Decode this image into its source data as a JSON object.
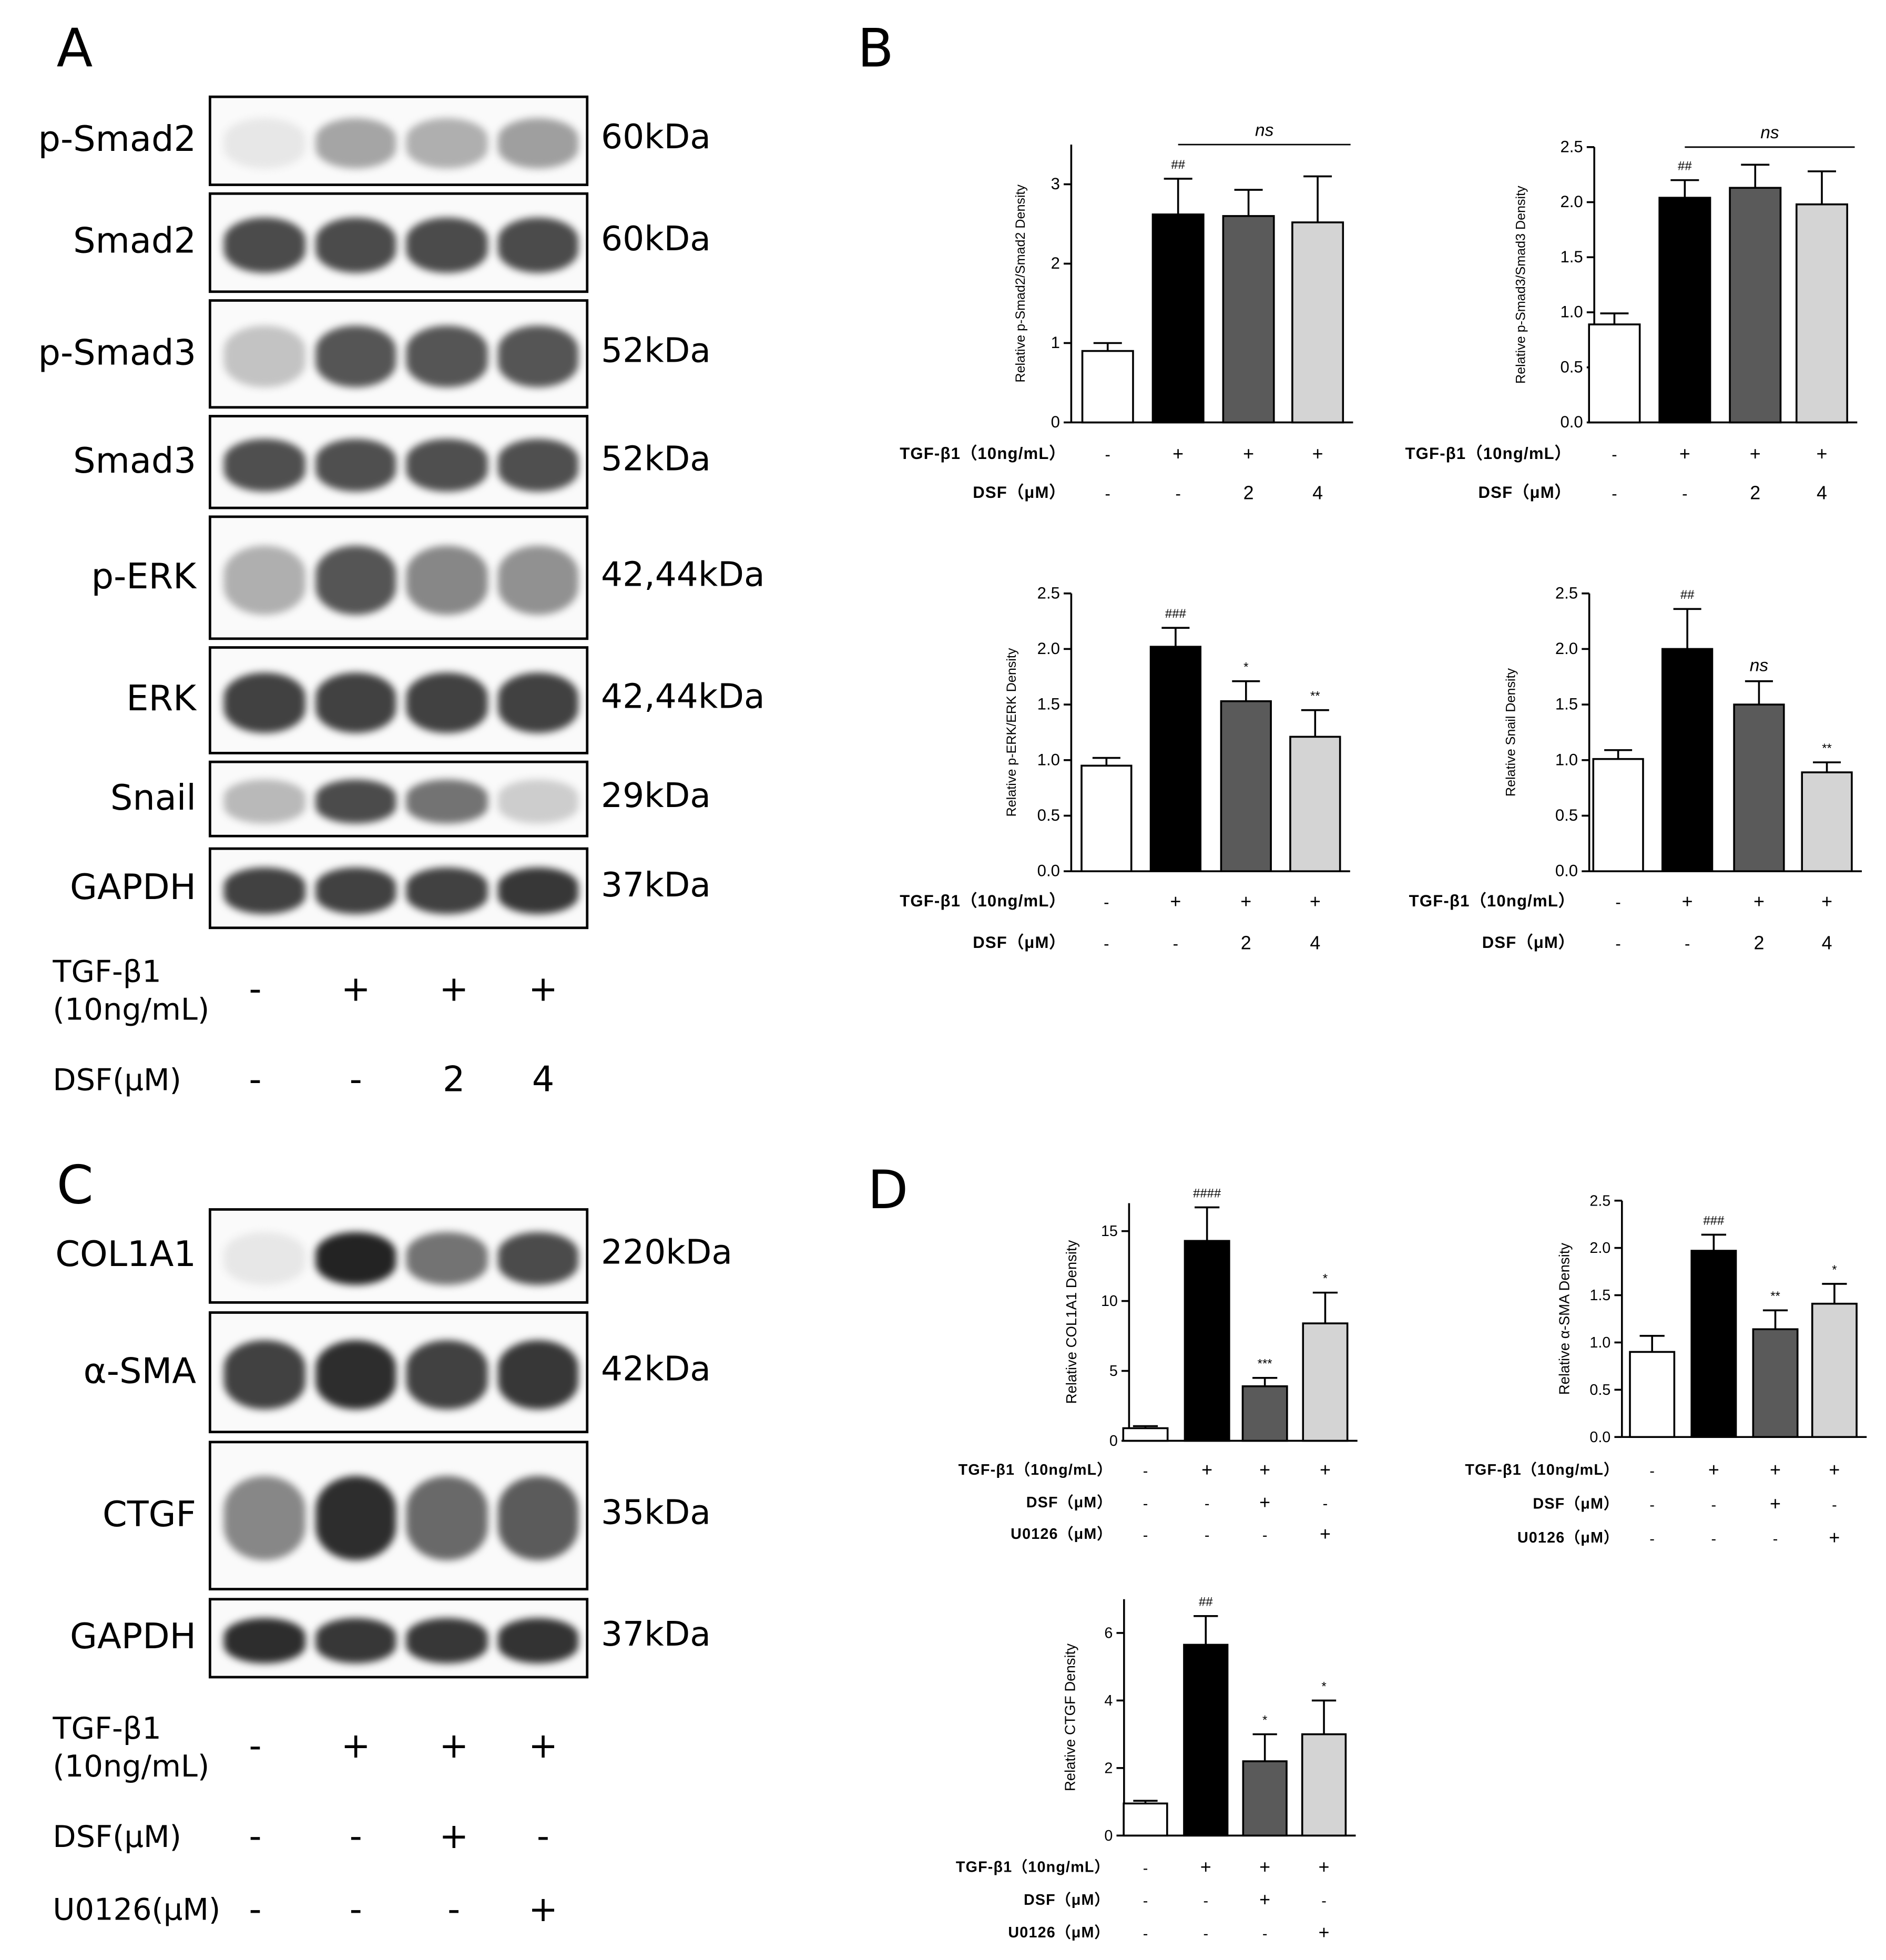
{
  "panels": {
    "a": "A",
    "b": "B",
    "c": "C",
    "d": "D"
  },
  "panel_a": {
    "blots": [
      {
        "label": "p-Smad2",
        "kda": "60kDa",
        "intensity": [
          0.02,
          0.35,
          0.3,
          0.38
        ]
      },
      {
        "label": "Smad2",
        "kda": "60kDa",
        "intensity": [
          0.8,
          0.8,
          0.8,
          0.8
        ]
      },
      {
        "label": "p-Smad3",
        "kda": "52kDa",
        "intensity": [
          0.2,
          0.75,
          0.75,
          0.75
        ]
      },
      {
        "label": "Smad3",
        "kda": "52kDa",
        "intensity": [
          0.78,
          0.78,
          0.78,
          0.78
        ]
      },
      {
        "label": "p-ERK",
        "kda": "42,44kDa",
        "intensity": [
          0.3,
          0.75,
          0.5,
          0.45
        ]
      },
      {
        "label": "ERK",
        "kda": "42,44kDa",
        "intensity": [
          0.85,
          0.85,
          0.85,
          0.85
        ]
      },
      {
        "label": "Snail",
        "kda": "29kDa",
        "intensity": [
          0.25,
          0.8,
          0.6,
          0.15
        ]
      },
      {
        "label": "GAPDH",
        "kda": "37kDa",
        "intensity": [
          0.85,
          0.85,
          0.85,
          0.9
        ]
      }
    ],
    "conditions": [
      {
        "label": "TGF-β1\n(10ng/mL)",
        "values": [
          "-",
          "+",
          "+",
          "+"
        ]
      },
      {
        "label": "DSF(μM)",
        "values": [
          "-",
          "-",
          "2",
          "4"
        ]
      }
    ]
  },
  "panel_c": {
    "blots": [
      {
        "label": "COL1A1",
        "kda": "220kDa",
        "intensity": [
          0.02,
          1.0,
          0.6,
          0.8
        ]
      },
      {
        "label": "α-SMA",
        "kda": "42kDa",
        "intensity": [
          0.85,
          0.95,
          0.85,
          0.9
        ]
      },
      {
        "label": "CTGF",
        "kda": "35kDa",
        "intensity": [
          0.5,
          0.95,
          0.65,
          0.72
        ]
      },
      {
        "label": "GAPDH",
        "kda": "37kDa",
        "intensity": [
          0.95,
          0.9,
          0.9,
          0.92
        ]
      }
    ],
    "conditions": [
      {
        "label": "TGF-β1\n(10ng/mL)",
        "values": [
          "-",
          "+",
          "+",
          "+"
        ]
      },
      {
        "label": "DSF(μM)",
        "values": [
          "-",
          "-",
          "+",
          "-"
        ]
      },
      {
        "label": "U0126(μM)",
        "values": [
          "-",
          "-",
          "-",
          "+"
        ]
      }
    ]
  },
  "chart_data": [
    {
      "type": "bar",
      "panel": "B",
      "ylabel": "Relative p-Smad2/Smad2 Density",
      "ylim": [
        0,
        3.5
      ],
      "yticks": [
        0,
        1,
        2,
        3
      ],
      "tick_labels": [
        "0",
        "1",
        "2",
        "3"
      ],
      "values": [
        0.9,
        2.62,
        2.6,
        2.52
      ],
      "errors": [
        0.1,
        0.45,
        0.33,
        0.58
      ],
      "colors": [
        "#ffffff",
        "#000000",
        "#5a5a5a",
        "#d4d4d4"
      ],
      "annotations": [
        "",
        "##",
        "",
        ""
      ],
      "bracket": {
        "text": "ns",
        "from": 1,
        "to": 3,
        "y": 3.5
      },
      "conditions": [
        {
          "label": "TGF-β1（10ng/mL）",
          "values": [
            "-",
            "+",
            "+",
            "+"
          ]
        },
        {
          "label": "DSF（μM）",
          "values": [
            "-",
            "-",
            "2",
            "4"
          ]
        }
      ]
    },
    {
      "type": "bar",
      "panel": "B",
      "ylabel": "Relative p-Smad3/Smad3 Density",
      "ylim": [
        0,
        2.5
      ],
      "yticks": [
        0,
        0.5,
        1,
        1.5,
        2,
        2.5
      ],
      "tick_labels": [
        "0.0",
        "0.5",
        "1.0",
        "1.5",
        "2.0",
        "2.5"
      ],
      "values": [
        0.89,
        2.04,
        2.13,
        1.98
      ],
      "errors": [
        0.1,
        0.16,
        0.21,
        0.3
      ],
      "colors": [
        "#ffffff",
        "#000000",
        "#5a5a5a",
        "#d4d4d4"
      ],
      "annotations": [
        "",
        "##",
        "",
        ""
      ],
      "bracket": {
        "text": "ns",
        "from": 1,
        "to": 3,
        "y": 2.5
      },
      "conditions": [
        {
          "label": "TGF-β1（10ng/mL）",
          "values": [
            "-",
            "+",
            "+",
            "+"
          ]
        },
        {
          "label": "DSF（μM）",
          "values": [
            "-",
            "-",
            "2",
            "4"
          ]
        }
      ]
    },
    {
      "type": "bar",
      "panel": "B",
      "ylabel": "Relative p-ERK/ERK Density",
      "ylim": [
        0,
        2.5
      ],
      "yticks": [
        0,
        0.5,
        1,
        1.5,
        2,
        2.5
      ],
      "tick_labels": [
        "0.0",
        "0.5",
        "1.0",
        "1.5",
        "2.0",
        "2.5"
      ],
      "values": [
        0.95,
        2.02,
        1.53,
        1.21
      ],
      "errors": [
        0.07,
        0.17,
        0.18,
        0.24
      ],
      "colors": [
        "#ffffff",
        "#000000",
        "#5a5a5a",
        "#d4d4d4"
      ],
      "annotations": [
        "",
        "###",
        "*",
        "**"
      ],
      "conditions": [
        {
          "label": "TGF-β1（10ng/mL）",
          "values": [
            "-",
            "+",
            "+",
            "+"
          ]
        },
        {
          "label": "DSF（μM）",
          "values": [
            "-",
            "-",
            "2",
            "4"
          ]
        }
      ]
    },
    {
      "type": "bar",
      "panel": "B",
      "ylabel": "Relative Snail Density",
      "ylim": [
        0,
        2.5
      ],
      "yticks": [
        0,
        0.5,
        1,
        1.5,
        2,
        2.5
      ],
      "tick_labels": [
        "0.0",
        "0.5",
        "1.0",
        "1.5",
        "2.0",
        "2.5"
      ],
      "values": [
        1.01,
        2.0,
        1.5,
        0.89
      ],
      "errors": [
        0.08,
        0.36,
        0.21,
        0.09
      ],
      "colors": [
        "#ffffff",
        "#000000",
        "#5a5a5a",
        "#d4d4d4"
      ],
      "annotations": [
        "",
        "##",
        "ns",
        "**"
      ],
      "conditions": [
        {
          "label": "TGF-β1（10ng/mL）",
          "values": [
            "-",
            "+",
            "+",
            "+"
          ]
        },
        {
          "label": "DSF（μM）",
          "values": [
            "-",
            "-",
            "2",
            "4"
          ]
        }
      ]
    },
    {
      "type": "bar",
      "panel": "D",
      "ylabel": "Relative COL1A1 Density",
      "ylim": [
        0,
        17
      ],
      "yticks": [
        0,
        5,
        10,
        15
      ],
      "tick_labels": [
        "0",
        "5",
        "10",
        "15"
      ],
      "values": [
        0.9,
        14.3,
        3.9,
        8.4
      ],
      "errors": [
        0.15,
        2.4,
        0.6,
        2.2
      ],
      "colors": [
        "#ffffff",
        "#000000",
        "#5a5a5a",
        "#d4d4d4"
      ],
      "annotations": [
        "",
        "####",
        "***",
        "*"
      ],
      "conditions": [
        {
          "label": "TGF-β1（10ng/mL）",
          "values": [
            "-",
            "+",
            "+",
            "+"
          ]
        },
        {
          "label": "DSF（μM）",
          "values": [
            "-",
            "-",
            "+",
            "-"
          ]
        },
        {
          "label": "U0126（μM）",
          "values": [
            "-",
            "-",
            "-",
            "+"
          ]
        }
      ]
    },
    {
      "type": "bar",
      "panel": "D",
      "ylabel": "Relative α-SMA Density",
      "ylim": [
        0,
        2.5
      ],
      "yticks": [
        0,
        0.5,
        1,
        1.5,
        2,
        2.5
      ],
      "tick_labels": [
        "0.0",
        "0.5",
        "1.0",
        "1.5",
        "2.0",
        "2.5"
      ],
      "values": [
        0.9,
        1.97,
        1.14,
        1.41
      ],
      "errors": [
        0.17,
        0.17,
        0.2,
        0.21
      ],
      "colors": [
        "#ffffff",
        "#000000",
        "#5a5a5a",
        "#d4d4d4"
      ],
      "annotations": [
        "",
        "###",
        "**",
        "*"
      ],
      "conditions": [
        {
          "label": "TGF-β1（10ng/mL）",
          "values": [
            "-",
            "+",
            "+",
            "+"
          ]
        },
        {
          "label": "DSF（μM）",
          "values": [
            "-",
            "-",
            "+",
            "-"
          ]
        },
        {
          "label": "U0126（μM）",
          "values": [
            "-",
            "-",
            "-",
            "+"
          ]
        }
      ]
    },
    {
      "type": "bar",
      "panel": "D",
      "ylabel": "Relative CTGF Density",
      "ylim": [
        0,
        7
      ],
      "yticks": [
        0,
        2,
        4,
        6
      ],
      "tick_labels": [
        "0",
        "2",
        "4",
        "6"
      ],
      "values": [
        0.95,
        5.65,
        2.2,
        3.0
      ],
      "errors": [
        0.08,
        0.85,
        0.8,
        1.0
      ],
      "colors": [
        "#ffffff",
        "#000000",
        "#5a5a5a",
        "#d4d4d4"
      ],
      "annotations": [
        "",
        "##",
        "*",
        "*"
      ],
      "conditions": [
        {
          "label": "TGF-β1（10ng/mL）",
          "values": [
            "-",
            "+",
            "+",
            "+"
          ]
        },
        {
          "label": "DSF（μM）",
          "values": [
            "-",
            "-",
            "+",
            "-"
          ]
        },
        {
          "label": "U0126（μM）",
          "values": [
            "-",
            "-",
            "-",
            "+"
          ]
        }
      ]
    }
  ]
}
